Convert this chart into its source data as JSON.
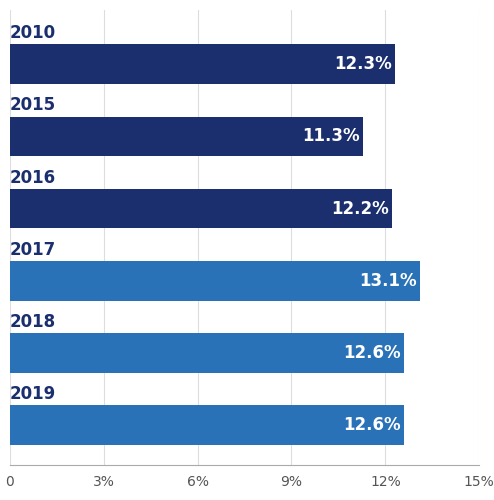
{
  "categories": [
    "2010",
    "2015",
    "2016",
    "2017",
    "2018",
    "2019"
  ],
  "values": [
    12.3,
    11.3,
    12.2,
    13.1,
    12.6,
    12.6
  ],
  "labels": [
    "12.3%",
    "11.3%",
    "12.2%",
    "13.1%",
    "12.6%",
    "12.6%"
  ],
  "bar_colors": [
    "#1b2f6e",
    "#1b2f6e",
    "#1b2f6e",
    "#2972b8",
    "#2972b8",
    "#2972b8"
  ],
  "xlim": [
    0,
    15
  ],
  "xticks": [
    0,
    3,
    6,
    9,
    12,
    15
  ],
  "xtick_labels": [
    "0",
    "3%",
    "6%",
    "9%",
    "12%",
    "15%"
  ],
  "background_color": "#ffffff",
  "year_fontsize": 12,
  "bar_label_fontsize": 12,
  "xtick_fontsize": 10,
  "bar_height": 0.55,
  "grid_color": "#dddddd",
  "text_color": "#1b2f6e",
  "bottom_spine_color": "#aaaaaa"
}
